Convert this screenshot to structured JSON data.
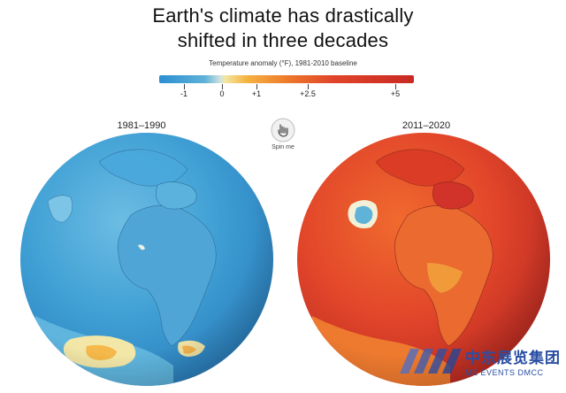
{
  "title": {
    "line1": "Earth's climate has drastically",
    "line2": "shifted in three decades"
  },
  "legend": {
    "title": "Temperature anomaly (°F), 1981-2010 baseline",
    "ticks": [
      {
        "label": "-1",
        "value": -1
      },
      {
        "label": "0",
        "value": 0
      },
      {
        "label": "+1",
        "value": 1
      },
      {
        "label": "+2.5",
        "value": 2.5
      },
      {
        "label": "+5",
        "value": 5
      }
    ],
    "colors": {
      "cold": "#2c8fd1",
      "neutral": "#f4e6a0",
      "warm": "#ee7a2c",
      "hot": "#c92922"
    }
  },
  "maps": [
    {
      "period": "1981–1990",
      "dominant_color": "#4aa3d6"
    },
    {
      "period": "2011–2020",
      "dominant_color": "#e2462a"
    }
  ],
  "spin": {
    "label": "Spin me",
    "icon": "hand-pointer-icon"
  },
  "watermark": {
    "cn": "中东展览集团",
    "en": "ME EVENTS DMCC"
  }
}
